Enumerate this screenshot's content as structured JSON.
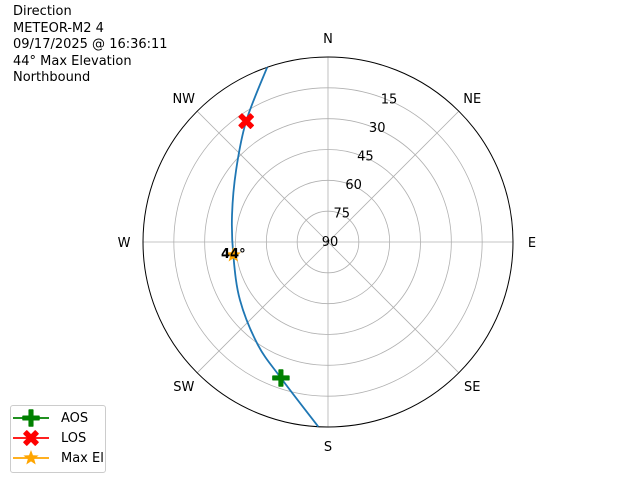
{
  "title_lines": [
    "Direction",
    "METEOR-M2 4",
    "09/17/2025 @ 16:36:11",
    "44° Max Elevation",
    "Northbound"
  ],
  "chart_data": {
    "type": "polar-line",
    "theta_zero": "N",
    "theta_direction": "clockwise",
    "r_axis": "elevation (deg), 90 at center, 0 at edge",
    "rlim": [
      90,
      0
    ],
    "r_ticks": [
      "15",
      "30",
      "45",
      "60",
      "75",
      "90"
    ],
    "r_tick_values": [
      15,
      30,
      45,
      60,
      75,
      90
    ],
    "theta_ticks": [
      "N",
      "NE",
      "E",
      "SE",
      "S",
      "SW",
      "W",
      "NW"
    ],
    "theta_tick_values": [
      0,
      45,
      90,
      135,
      180,
      225,
      270,
      315
    ],
    "grid": true,
    "track": {
      "color": "#1f77b4",
      "azimuth": [
        183,
        199.1,
        214.2,
        236.6,
        262.2,
        285.7,
        308.1,
        325.9,
        340.8
      ],
      "elevation": [
        0,
        20,
        29.4,
        38.7,
        43.5,
        41.5,
        33.2,
        19,
        0
      ]
    },
    "markers": [
      {
        "name": "AOS",
        "azimuth": 199.1,
        "elevation": 20,
        "color": "#008000",
        "shape": "plus"
      },
      {
        "name": "LOS",
        "azimuth": 325.9,
        "elevation": 19,
        "color": "#ff0000",
        "shape": "x"
      },
      {
        "name": "Max El",
        "azimuth": 262.2,
        "elevation": 43.5,
        "color": "#ffa500",
        "shape": "star"
      }
    ],
    "annotation": {
      "text": "44°",
      "azimuth": 262.2,
      "elevation": 43.5
    },
    "legend_position": "bottom-left"
  }
}
